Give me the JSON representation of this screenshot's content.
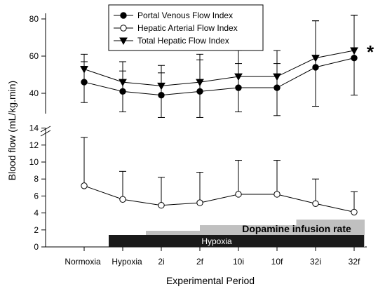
{
  "chart_data": {
    "type": "line",
    "xlabel": "Experimental Period",
    "ylabel": "Blood flow (mL/kg.min)",
    "categories": [
      "Normoxia",
      "Hypoxia",
      "2i",
      "2f",
      "10i",
      "10f",
      "32i",
      "32f"
    ],
    "y_axis": {
      "broken": true,
      "lower_range": [
        0,
        14
      ],
      "lower_ticks": [
        0,
        2,
        4,
        6,
        8,
        10,
        12,
        14
      ],
      "upper_range": [
        30,
        80
      ],
      "upper_ticks": [
        40,
        60,
        80
      ]
    },
    "legend": {
      "placement": "top-center",
      "box": true
    },
    "series": [
      {
        "name": "Portal Venous Flow Index",
        "marker": "filled-circle",
        "values": [
          46,
          41,
          39,
          41,
          43,
          43,
          54,
          59
        ],
        "error_upper": [
          57,
          52,
          51,
          58,
          56,
          56,
          79,
          82
        ],
        "error_lower": [
          35,
          30,
          27,
          27,
          30,
          28,
          33,
          39
        ]
      },
      {
        "name": "Hepatic Arterial Flow Index",
        "marker": "open-circle",
        "values": [
          7.2,
          5.6,
          4.9,
          5.2,
          6.2,
          6.2,
          5.1,
          4.1
        ],
        "error_upper": [
          12.9,
          8.9,
          8.2,
          8.8,
          10.2,
          10.2,
          8.0,
          6.5
        ]
      },
      {
        "name": "Total Hepatic Flow Index",
        "marker": "filled-triangle-down",
        "values": [
          53,
          46,
          44,
          46,
          49,
          49,
          59,
          63
        ],
        "error_upper": [
          61,
          57,
          55,
          61,
          63,
          63,
          79,
          82
        ]
      }
    ],
    "annotations": {
      "significance": {
        "text": "*",
        "at_category": "32f"
      },
      "hypoxia_bar": {
        "label": "Hypoxia",
        "from_category": "Hypoxia",
        "to_category": "32f",
        "color": "#1a1a1a"
      },
      "dopamine_bar": {
        "label": "Dopamine infusion rate",
        "color": "#c0c0c0",
        "steps": [
          {
            "from": 1.6,
            "to": 3.0,
            "level": 1
          },
          {
            "from": 3.0,
            "to": 5.5,
            "level": 2
          },
          {
            "from": 5.5,
            "to": 7.4,
            "level": 3
          }
        ]
      }
    }
  }
}
